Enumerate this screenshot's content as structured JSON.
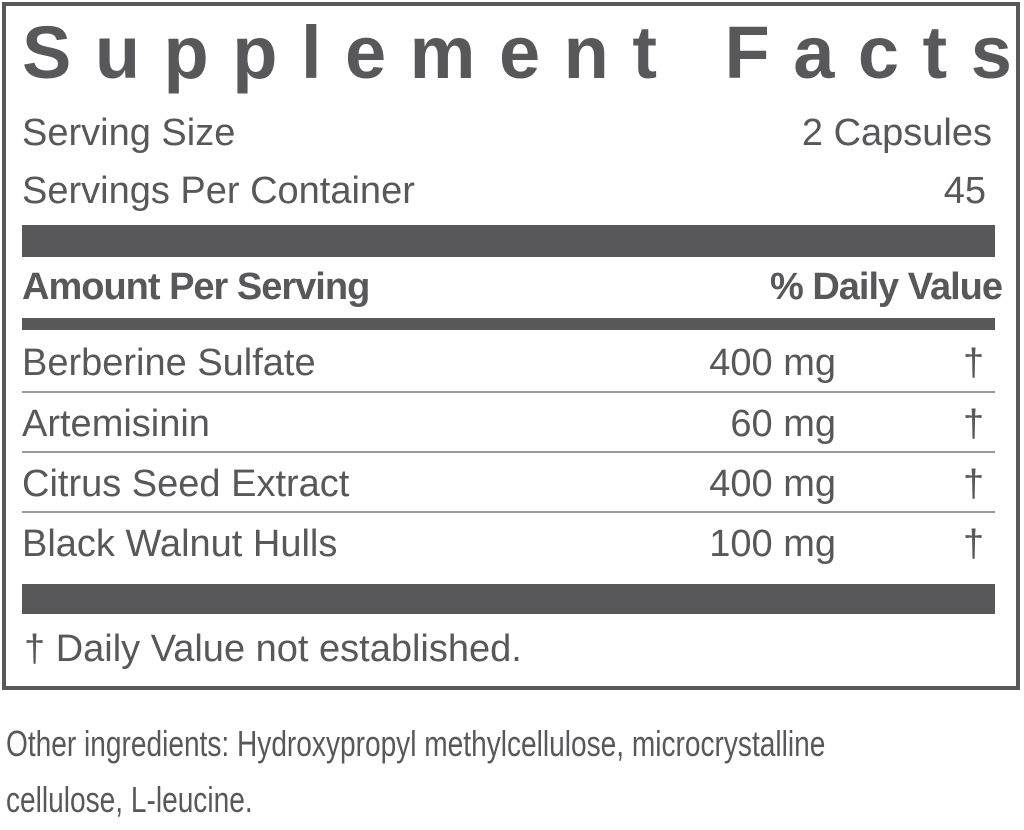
{
  "title": "Supplement Facts",
  "serving_size": {
    "label": "Serving Size",
    "value": "2  Capsules"
  },
  "servings_per_container": {
    "label": "Servings Per Container",
    "value": "45"
  },
  "header": {
    "amount": "Amount Per Serving",
    "dv": "% Daily Value"
  },
  "ingredients": [
    {
      "name": "Berberine Sulfate",
      "amount": "400 mg",
      "dv": "†"
    },
    {
      "name": "Artemisinin",
      "amount": "60 mg",
      "dv": "†"
    },
    {
      "name": "Citrus Seed Extract",
      "amount": "400 mg",
      "dv": "†"
    },
    {
      "name": "Black Walnut Hulls",
      "amount": "100 mg",
      "dv": "†"
    }
  ],
  "footnote": "† Daily Value not established.",
  "other_ingredients": [
    "Other ingredients: Hydroxypropyl methylcellulose, microcrystalline",
    "cellulose,  L-leucine."
  ],
  "colors": {
    "ink": "#58585a"
  }
}
